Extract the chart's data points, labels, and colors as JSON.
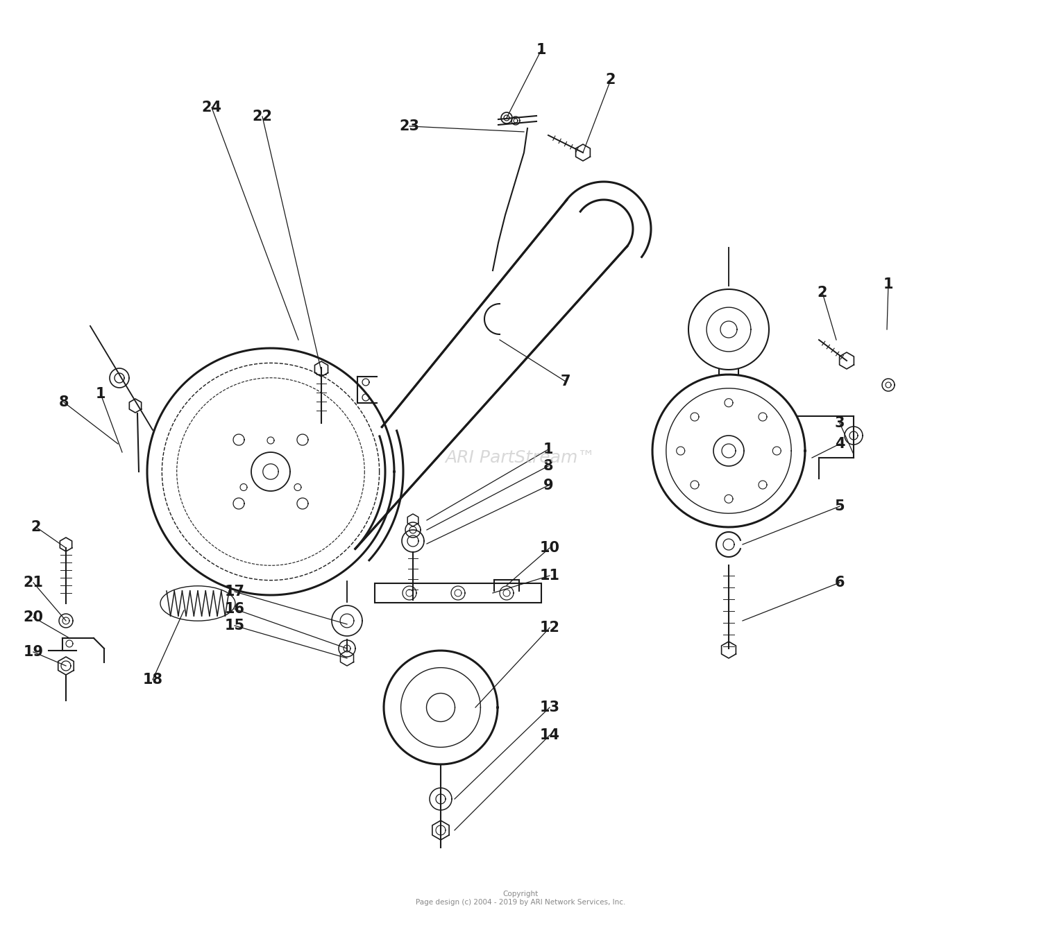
{
  "bg_color": "#ffffff",
  "watermark": "ARI PartStream™",
  "copyright": "Copyright\nPage design (c) 2004 - 2019 by ARI Network Services, Inc.",
  "figsize": [
    15.0,
    13.38
  ],
  "dpi": 100
}
